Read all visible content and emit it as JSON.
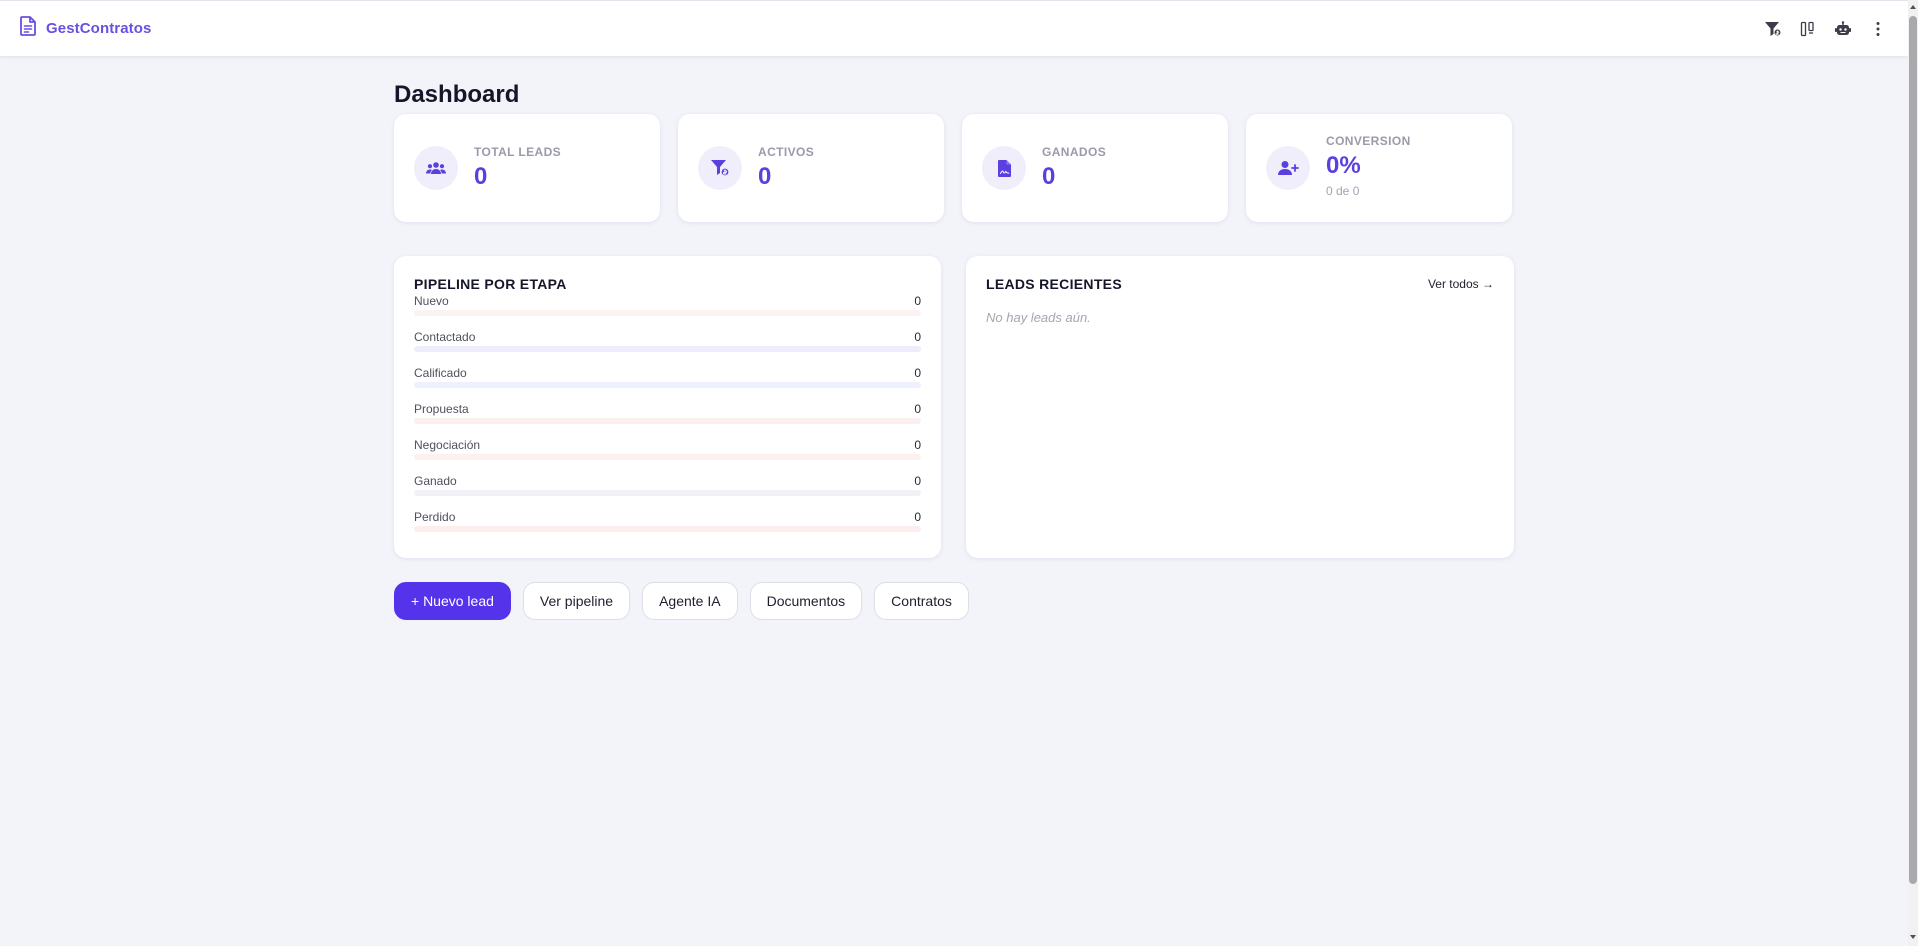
{
  "topbar": {
    "brand": "GestContratos",
    "icons": [
      "funnel-dollar-icon",
      "kanban-board-icon",
      "robot-icon",
      "more-vertical-icon"
    ]
  },
  "page": {
    "title": "Dashboard"
  },
  "stats": [
    {
      "label": "TOTAL LEADS",
      "value": "0",
      "icon": "users-icon"
    },
    {
      "label": "ACTIVOS",
      "value": "0",
      "icon": "funnel-dollar-icon"
    },
    {
      "label": "GANADOS",
      "value": "0",
      "icon": "contract-file-icon"
    },
    {
      "label": "CONVERSION",
      "value": "0%",
      "sub": "0 de 0",
      "icon": "user-plus-icon"
    }
  ],
  "pipeline": {
    "title": "PIPELINE POR ETAPA",
    "stages": [
      {
        "name": "Nuevo",
        "count": "0",
        "progress": 0,
        "track_color": "#fbf3f1"
      },
      {
        "name": "Contactado",
        "count": "0",
        "progress": 0,
        "track_color": "#eeedfb"
      },
      {
        "name": "Calificado",
        "count": "0",
        "progress": 0,
        "track_color": "#eef0fb"
      },
      {
        "name": "Propuesta",
        "count": "0",
        "progress": 0,
        "track_color": "#fcefef"
      },
      {
        "name": "Negociación",
        "count": "0",
        "progress": 0,
        "track_color": "#fcf1ef"
      },
      {
        "name": "Ganado",
        "count": "0",
        "progress": 0,
        "track_color": "#f3f0f8"
      },
      {
        "name": "Perdido",
        "count": "0",
        "progress": 0,
        "track_color": "#fdeeee"
      }
    ]
  },
  "recent": {
    "title": "LEADS RECIENTES",
    "see_all": "Ver todos →",
    "empty": "No hay leads aún."
  },
  "actions": {
    "new_lead": "+ Nuevo lead",
    "pipeline": "Ver pipeline",
    "agent": "Agente IA",
    "documents": "Documentos",
    "contracts": "Contratos"
  },
  "colors": {
    "accent": "#5533ea",
    "brand": "#6b4fe0",
    "value": "#5b3fe0"
  }
}
